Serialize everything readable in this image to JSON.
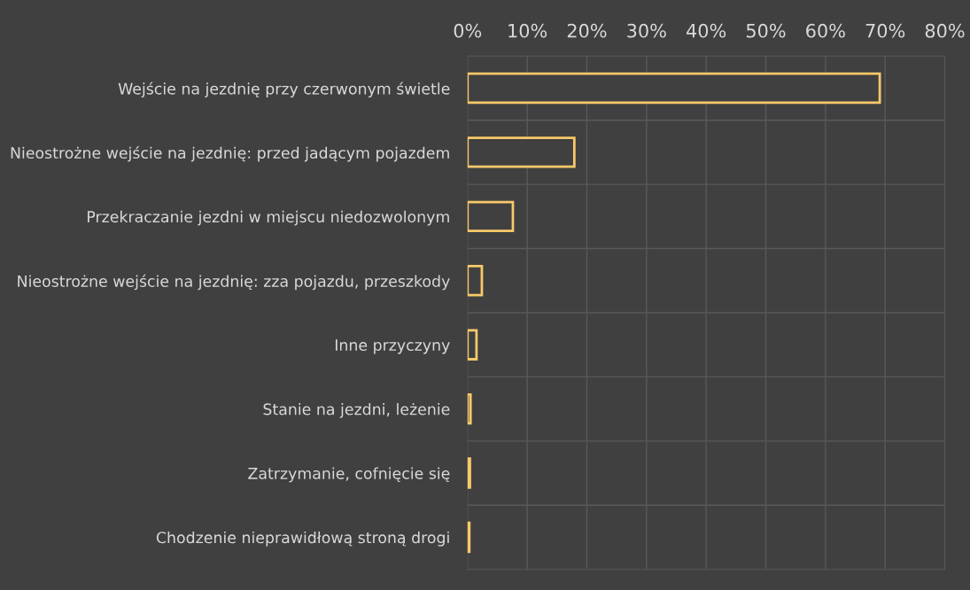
{
  "chart_data": {
    "type": "bar",
    "orientation": "horizontal",
    "categories": [
      "Wejście na jezdnię przy czerwonym świetle",
      "Nieostrożne wejście na jezdnię: przed jadącym pojazdem",
      "Przekraczanie jezdni w miejscu niedozwolonym",
      "Nieostrożne wejście na jezdnię: zza pojazdu, przeszkody",
      "Inne przyczyny",
      "Stanie na jezdni, leżenie",
      "Zatrzymanie, cofnięcie się",
      "Chodzenie nieprawidłową stroną drogi"
    ],
    "values": [
      69.1,
      17.9,
      7.6,
      2.4,
      1.5,
      0.5,
      0.4,
      0.3
    ],
    "color": "#f7c96a",
    "xlim": [
      0,
      80
    ],
    "xticks": [
      {
        "value": 0,
        "label": "0%"
      },
      {
        "value": 10,
        "label": "10%"
      },
      {
        "value": 20,
        "label": "20%"
      },
      {
        "value": 30,
        "label": "30%"
      },
      {
        "value": 40,
        "label": "40%"
      },
      {
        "value": 50,
        "label": "50%"
      },
      {
        "value": 60,
        "label": "60%"
      },
      {
        "value": 70,
        "label": "70%"
      },
      {
        "value": 80,
        "label": "80%"
      }
    ],
    "grid": true
  }
}
